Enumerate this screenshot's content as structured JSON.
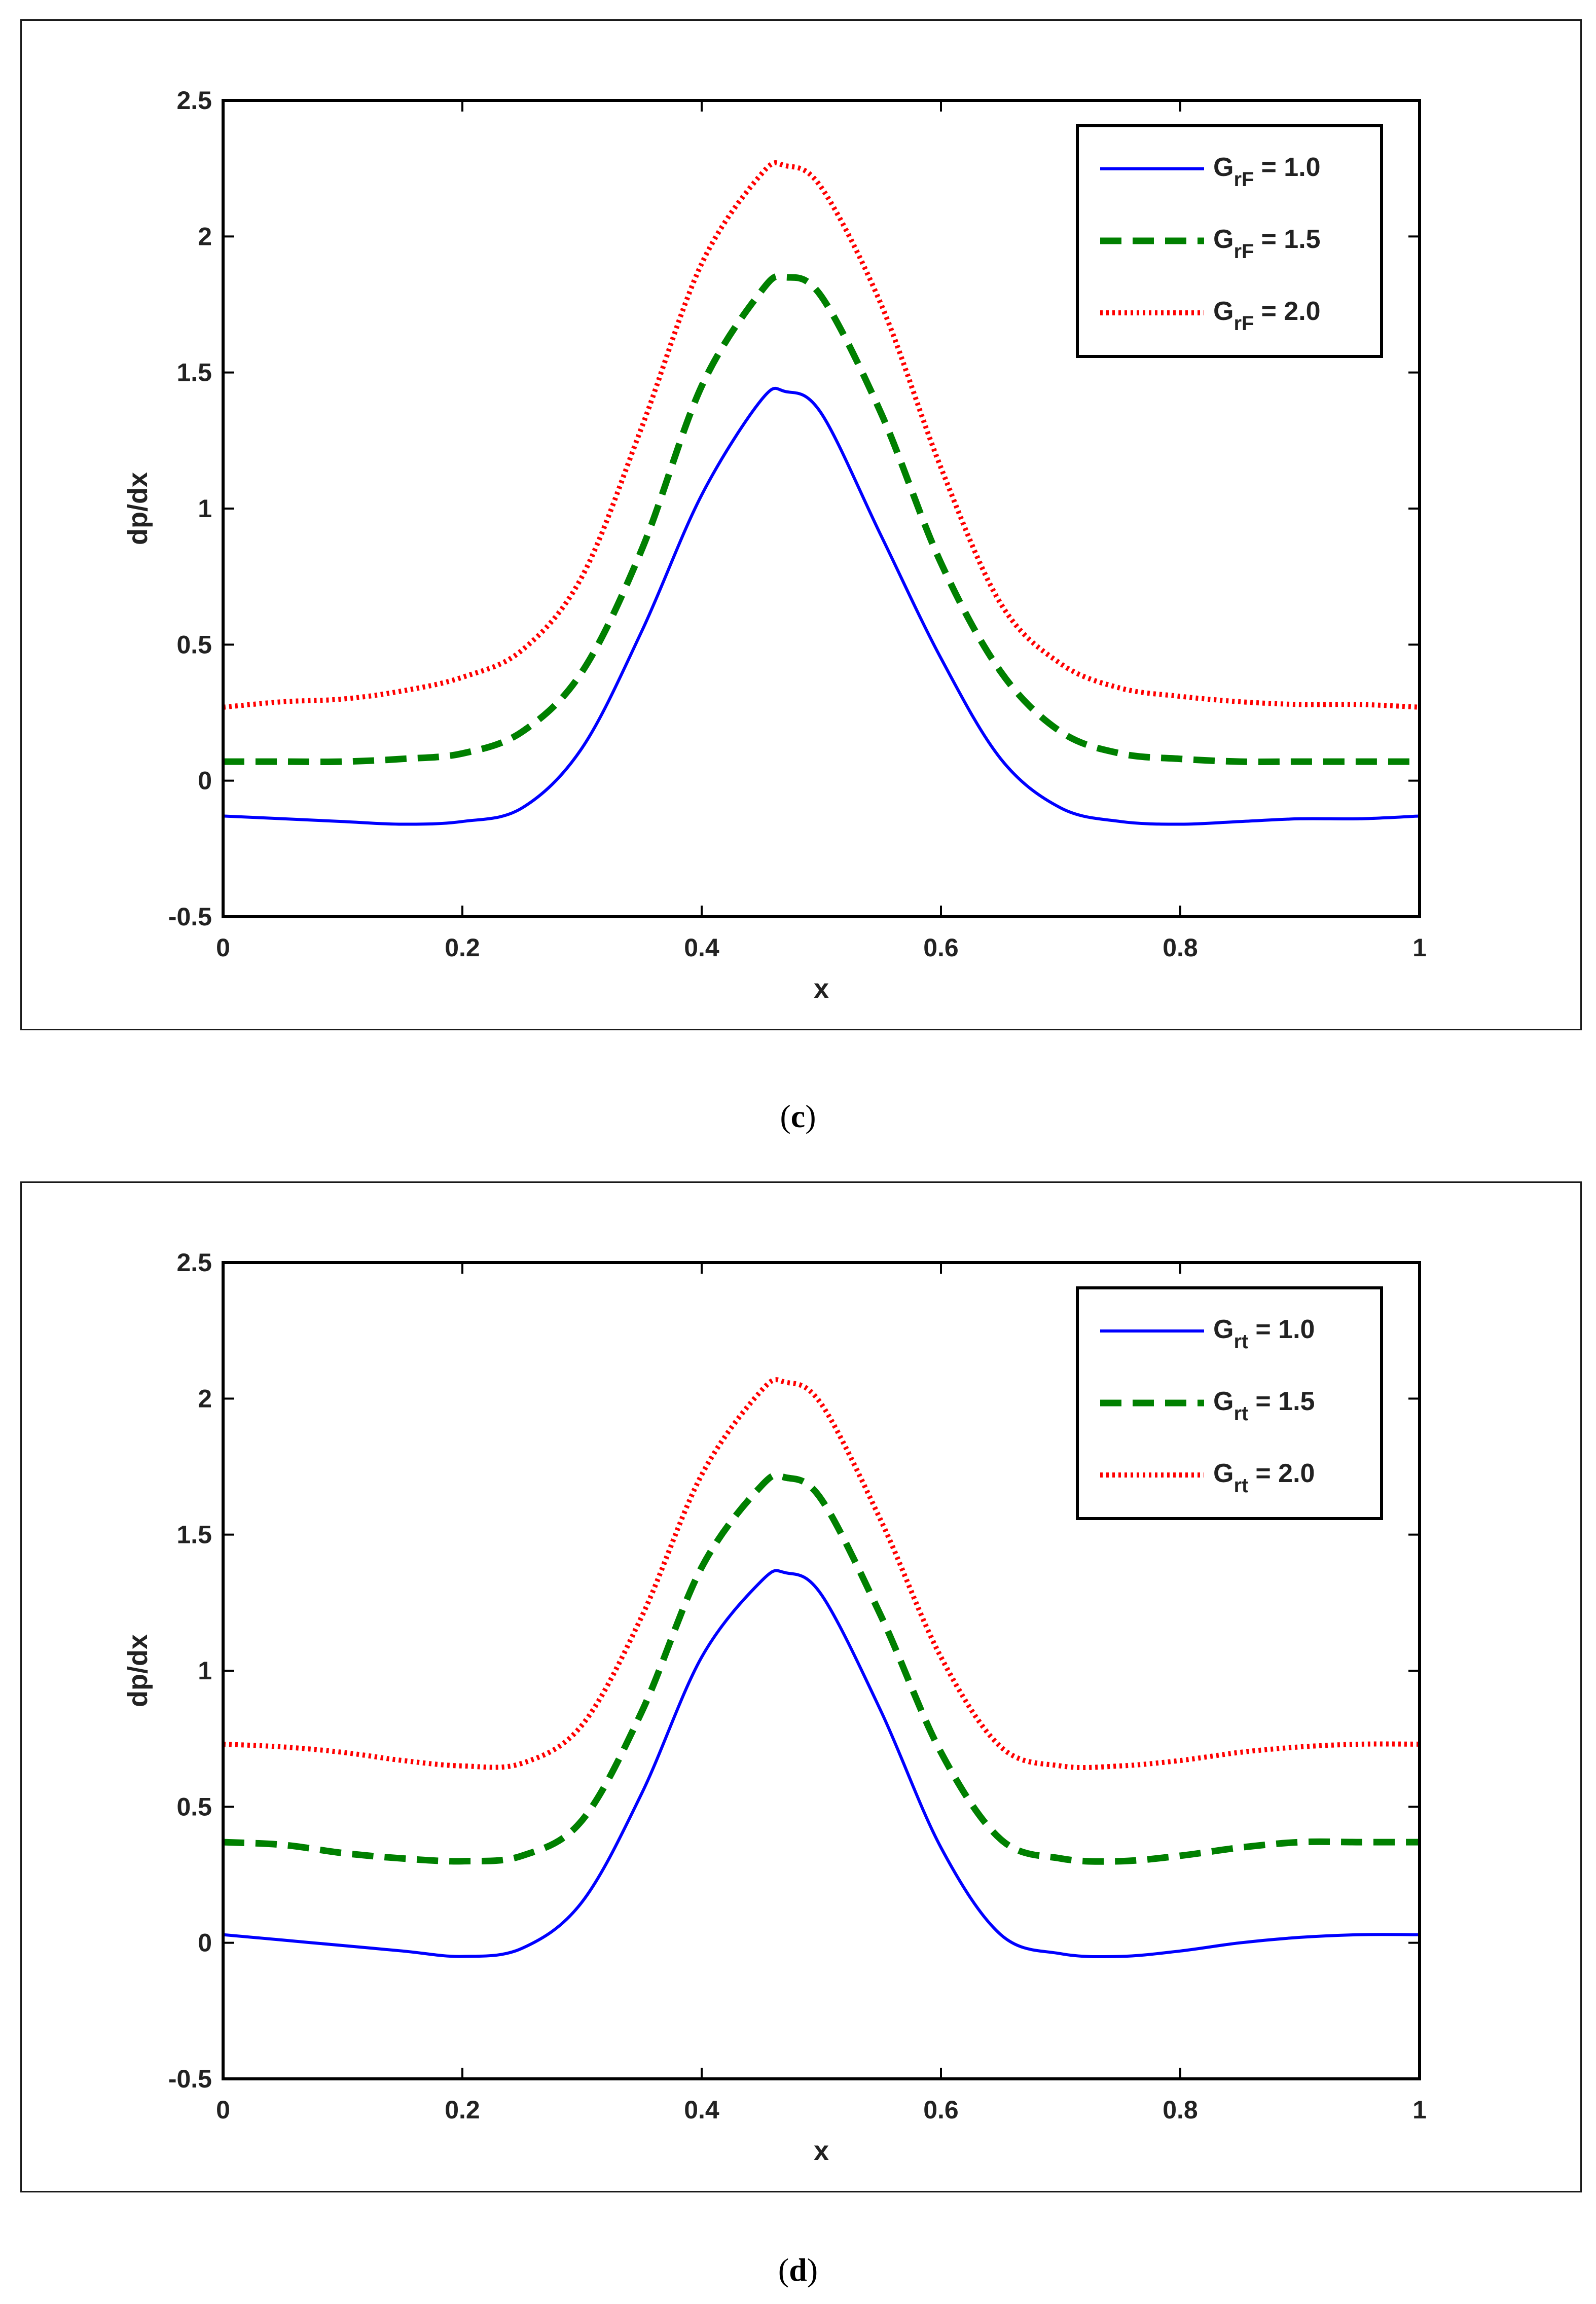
{
  "chart_data": [
    {
      "type": "line",
      "panel_label": "c",
      "title": "",
      "xlabel": "x",
      "ylabel": "dp/dx",
      "xlim": [
        0,
        1
      ],
      "ylim": [
        -0.5,
        2.5
      ],
      "xticks": [
        0,
        0.2,
        0.4,
        0.6,
        0.8,
        1
      ],
      "xtick_labels": [
        "0",
        "0.2",
        "0.4",
        "0.6",
        "0.8",
        "1"
      ],
      "yticks": [
        -0.5,
        0,
        0.5,
        1,
        1.5,
        2,
        2.5
      ],
      "ytick_labels": [
        "-0.5",
        "0",
        "0.5",
        "1",
        "1.5",
        "2",
        "2.5"
      ],
      "legend_position": "top-right",
      "x": [
        0,
        0.05,
        0.1,
        0.15,
        0.2,
        0.25,
        0.3,
        0.35,
        0.4,
        0.45,
        0.47,
        0.5,
        0.55,
        0.6,
        0.65,
        0.7,
        0.75,
        0.8,
        0.85,
        0.9,
        0.95,
        1
      ],
      "series": [
        {
          "name": "G rF = 1.0",
          "legend_main": "G",
          "legend_sub": "rF",
          "legend_value": "= 1.0",
          "color": "#0000ff",
          "style": "solid",
          "values": [
            -0.13,
            -0.14,
            -0.15,
            -0.16,
            -0.15,
            -0.1,
            0.12,
            0.55,
            1.05,
            1.4,
            1.43,
            1.35,
            0.9,
            0.45,
            0.08,
            -0.1,
            -0.15,
            -0.16,
            -0.15,
            -0.14,
            -0.14,
            -0.13
          ]
        },
        {
          "name": "G rF = 1.5",
          "legend_main": "G",
          "legend_sub": "rF",
          "legend_value": "= 1.5",
          "color": "#008000",
          "style": "dashed",
          "values": [
            0.07,
            0.07,
            0.07,
            0.08,
            0.1,
            0.18,
            0.4,
            0.85,
            1.45,
            1.8,
            1.85,
            1.78,
            1.35,
            0.8,
            0.4,
            0.18,
            0.1,
            0.08,
            0.07,
            0.07,
            0.07,
            0.07
          ]
        },
        {
          "name": "G rF = 2.0",
          "legend_main": "G",
          "legend_sub": "rF",
          "legend_value": "= 2.0",
          "color": "#ff0000",
          "style": "dotted",
          "values": [
            0.27,
            0.29,
            0.3,
            0.33,
            0.38,
            0.48,
            0.75,
            1.3,
            1.9,
            2.23,
            2.26,
            2.18,
            1.75,
            1.15,
            0.65,
            0.43,
            0.34,
            0.31,
            0.29,
            0.28,
            0.28,
            0.27
          ]
        }
      ]
    },
    {
      "type": "line",
      "panel_label": "d",
      "title": "",
      "xlabel": "x",
      "ylabel": "dp/dx",
      "xlim": [
        0,
        1
      ],
      "ylim": [
        -0.5,
        2.5
      ],
      "xticks": [
        0,
        0.2,
        0.4,
        0.6,
        0.8,
        1
      ],
      "xtick_labels": [
        "0",
        "0.2",
        "0.4",
        "0.6",
        "0.8",
        "1"
      ],
      "yticks": [
        -0.5,
        0,
        0.5,
        1,
        1.5,
        2,
        2.5
      ],
      "ytick_labels": [
        "-0.5",
        "0",
        "0.5",
        "1",
        "1.5",
        "2",
        "2.5"
      ],
      "legend_position": "top-right",
      "x": [
        0,
        0.05,
        0.1,
        0.15,
        0.2,
        0.25,
        0.3,
        0.35,
        0.4,
        0.45,
        0.47,
        0.5,
        0.55,
        0.6,
        0.65,
        0.7,
        0.75,
        0.8,
        0.85,
        0.9,
        0.95,
        1
      ],
      "series": [
        {
          "name": "G rt = 1.0",
          "legend_main": "G",
          "legend_sub": "rt",
          "legend_value": "= 1.0",
          "color": "#0000ff",
          "style": "solid",
          "values": [
            0.03,
            0.01,
            -0.01,
            -0.03,
            -0.05,
            -0.02,
            0.15,
            0.55,
            1.05,
            1.33,
            1.36,
            1.28,
            0.85,
            0.35,
            0.03,
            -0.04,
            -0.05,
            -0.03,
            0.0,
            0.02,
            0.03,
            0.03
          ]
        },
        {
          "name": "G rt = 1.5",
          "legend_main": "G",
          "legend_sub": "rt",
          "legend_value": "= 1.5",
          "color": "#008000",
          "style": "dashed",
          "values": [
            0.37,
            0.36,
            0.33,
            0.31,
            0.3,
            0.32,
            0.45,
            0.85,
            1.38,
            1.68,
            1.71,
            1.63,
            1.2,
            0.7,
            0.38,
            0.31,
            0.3,
            0.32,
            0.35,
            0.37,
            0.37,
            0.37
          ]
        },
        {
          "name": "G rt = 2.0",
          "legend_main": "G",
          "legend_sub": "rt",
          "legend_value": "= 2.0",
          "color": "#ff0000",
          "style": "dotted",
          "values": [
            0.73,
            0.72,
            0.7,
            0.67,
            0.65,
            0.66,
            0.8,
            1.2,
            1.72,
            2.03,
            2.06,
            1.98,
            1.55,
            1.05,
            0.72,
            0.65,
            0.65,
            0.67,
            0.7,
            0.72,
            0.73,
            0.73
          ]
        }
      ]
    }
  ]
}
